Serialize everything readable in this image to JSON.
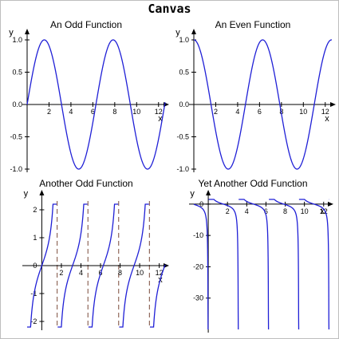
{
  "canvas_title": "Canvas",
  "colors": {
    "curve": "#1f1fd6",
    "axis": "#000000",
    "asymptote": "#7a4a3a",
    "frame": "#bdbdbd"
  },
  "chart_data": [
    {
      "type": "line",
      "title": "An Odd Function",
      "xlabel": "x",
      "ylabel": "y",
      "xlim": [
        0,
        12.6
      ],
      "ylim": [
        -1,
        1
      ],
      "x_ticks": [
        2,
        4,
        6,
        8,
        10,
        12
      ],
      "y_ticks": [
        "-1.0",
        "-0.5",
        "0.0",
        "0.5",
        "1.0"
      ],
      "function": "sin",
      "asymptotes": [],
      "grid": false
    },
    {
      "type": "line",
      "title": "An Even Function",
      "xlabel": "x",
      "ylabel": "y",
      "xlim": [
        0,
        12.6
      ],
      "ylim": [
        -1,
        1
      ],
      "x_ticks": [
        2,
        4,
        6,
        8,
        10,
        12
      ],
      "y_ticks": [
        "-1.0",
        "-0.5",
        "0.0",
        "0.5",
        "1.0"
      ],
      "function": "cos",
      "asymptotes": [],
      "grid": false
    },
    {
      "type": "line",
      "title": "Another Odd Function",
      "xlabel": "x",
      "ylabel": "y",
      "xlim": [
        -1.5,
        12.6
      ],
      "ylim": [
        -2.2,
        2.2
      ],
      "x_ticks": [
        2,
        4,
        6,
        8,
        10,
        12
      ],
      "y_ticks": [
        "-2",
        "-1",
        "0",
        "1",
        "2"
      ],
      "function": "tan",
      "asymptotes": [
        1.5708,
        4.7124,
        7.854,
        10.9956
      ],
      "grid": false
    },
    {
      "type": "line",
      "title": "Yet Another Odd Function",
      "xlabel": "x",
      "ylabel": "y",
      "xlim": [
        -1.5,
        12.6
      ],
      "ylim": [
        -40,
        1.5
      ],
      "x_ticks": [
        2,
        4,
        6,
        8,
        10,
        12
      ],
      "y_ticks": [
        "-30",
        "-20",
        "-10",
        "0"
      ],
      "function": "cot",
      "asymptotes": [],
      "grid": false
    }
  ]
}
